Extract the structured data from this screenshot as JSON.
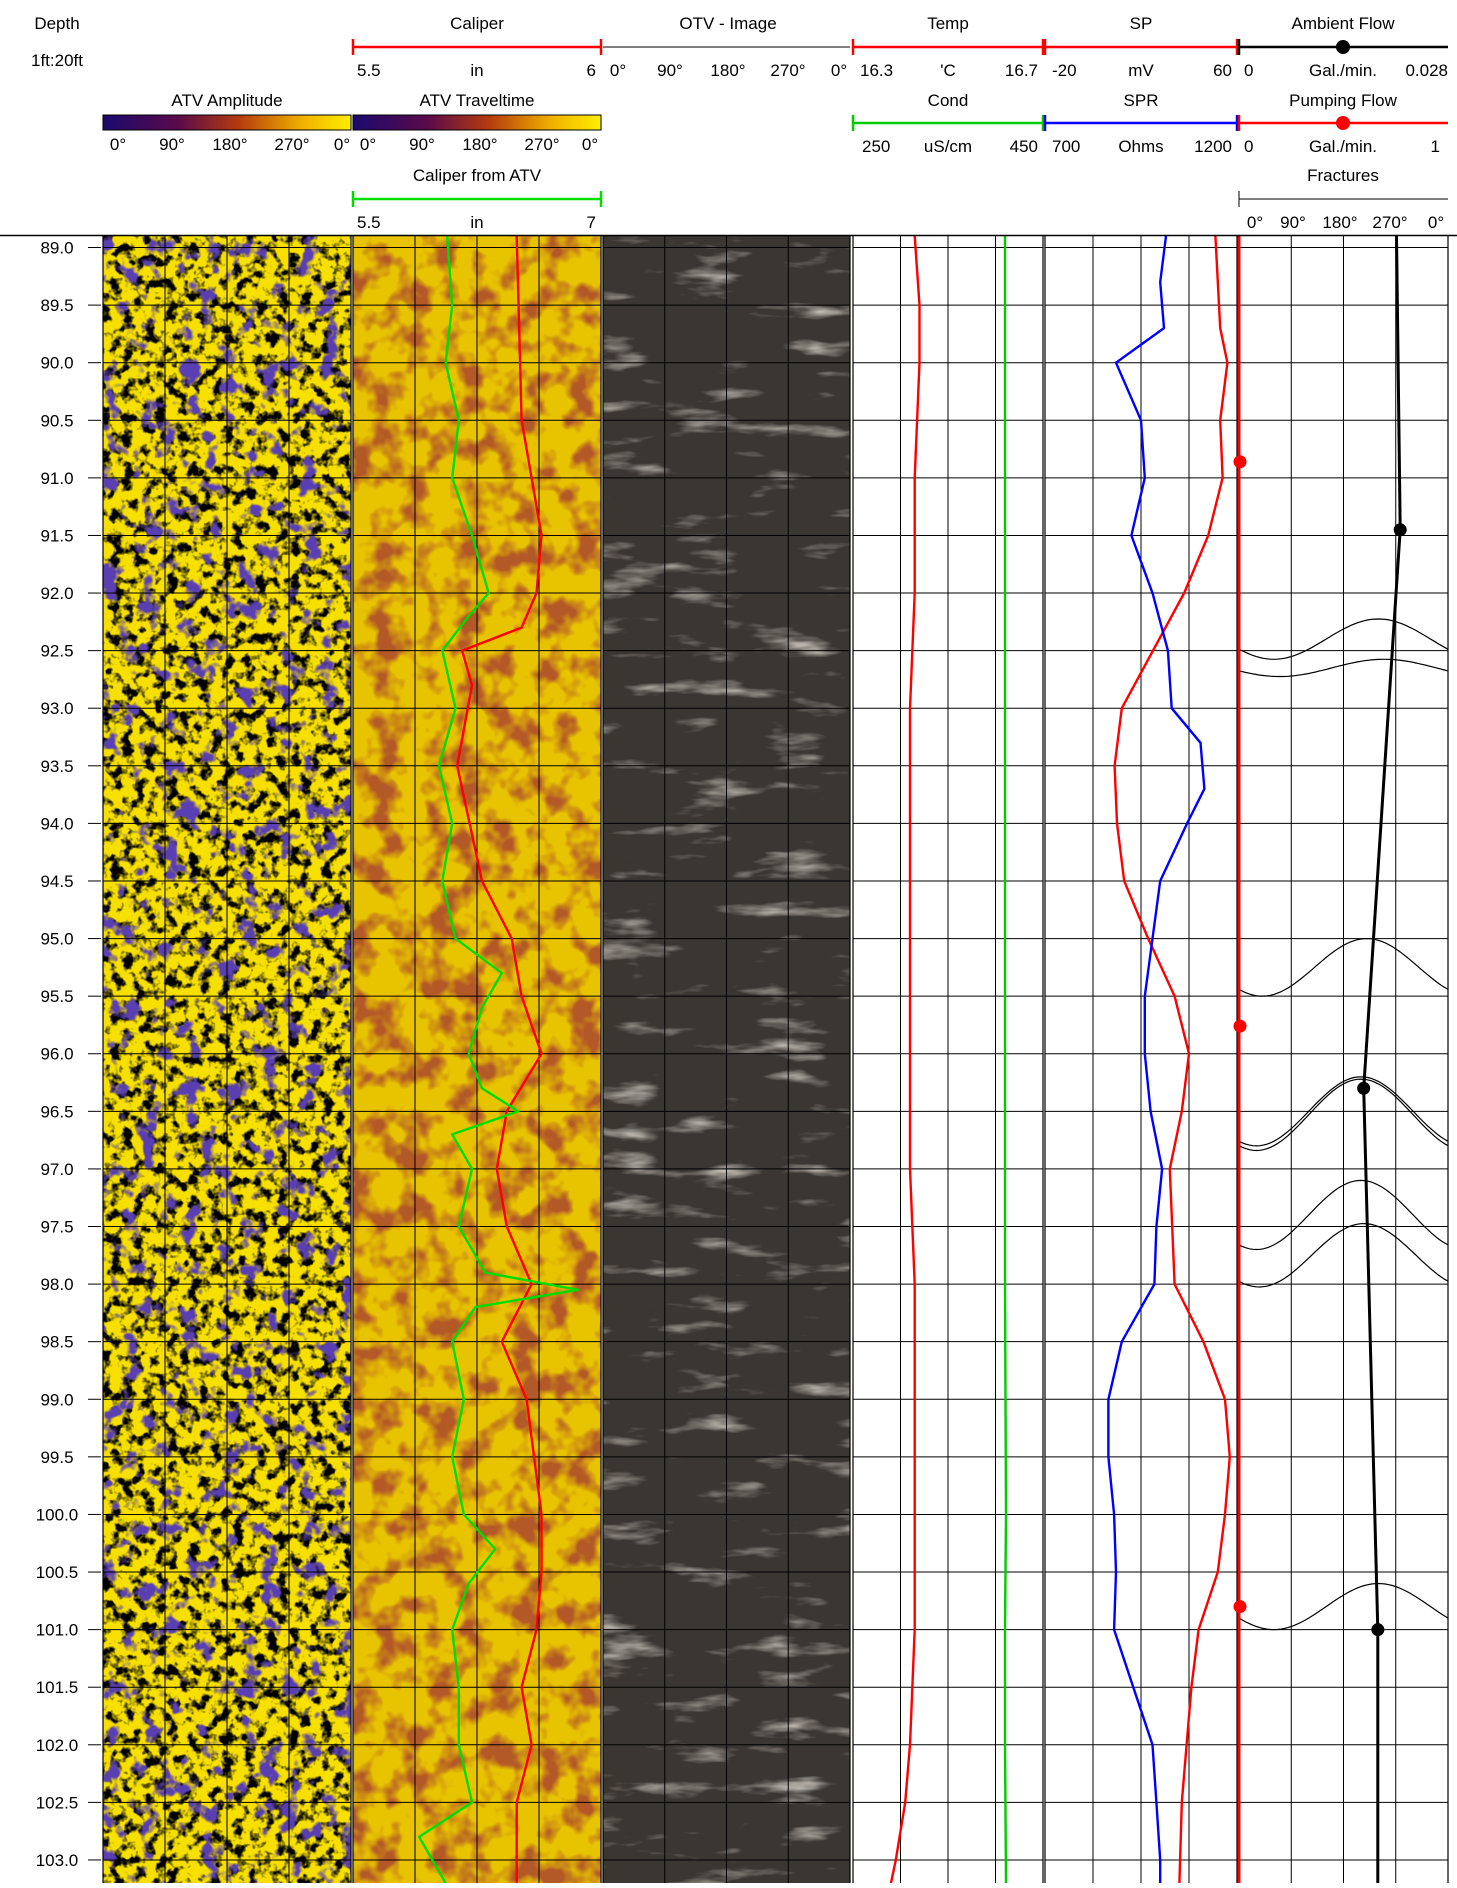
{
  "header": {
    "depth_title": "Depth",
    "depth_scale": "1ft:20ft",
    "atv_amplitude": {
      "title": "ATV Amplitude",
      "ticks": [
        "0°",
        "90°",
        "180°",
        "270°",
        "0°"
      ]
    },
    "atv_traveltime": {
      "title": "ATV Traveltime",
      "ticks": [
        "0°",
        "90°",
        "180°",
        "270°",
        "0°"
      ]
    },
    "caliper": {
      "title": "Caliper",
      "min": "5.5",
      "unit": "in",
      "max": "6",
      "color": "#ff0000"
    },
    "caliper_atv": {
      "title": "Caliper from ATV",
      "min": "5.5",
      "unit": "in",
      "max": "7",
      "color": "#00dd00"
    },
    "otv": {
      "title": "OTV - Image",
      "ticks": [
        "0°",
        "90°",
        "180°",
        "270°",
        "0°"
      ]
    },
    "temp": {
      "title": "Temp",
      "min": "16.3",
      "unit": "'C",
      "max": "16.7",
      "color": "#ff0000"
    },
    "cond": {
      "title": "Cond",
      "min": "250",
      "unit": "uS/cm",
      "max": "450",
      "color": "#00cc00"
    },
    "sp": {
      "title": "SP",
      "min": "-20",
      "unit": "mV",
      "max": "60",
      "color": "#ff0000"
    },
    "spr": {
      "title": "SPR",
      "min": "700",
      "unit": "Ohms",
      "max": "1200",
      "color": "#0000ff"
    },
    "ambient_flow": {
      "title": "Ambient Flow",
      "min": "0",
      "unit": "Gal./min.",
      "max": "0.028",
      "color": "#000000"
    },
    "pumping_flow": {
      "title": "Pumping Flow",
      "min": "0",
      "unit": "Gal./min.",
      "max": "1",
      "color": "#ff0000"
    },
    "fractures": {
      "title": "Fractures",
      "ticks": [
        "0°",
        "90°",
        "180°",
        "270°",
        "0°"
      ]
    }
  },
  "chart_data": {
    "type": "line",
    "depth_unit": "ft",
    "depth_range": [
      88.9,
      103.2
    ],
    "depth_ticks": [
      "89.0",
      "89.5",
      "90.0",
      "90.5",
      "91.0",
      "91.5",
      "92.0",
      "92.5",
      "93.0",
      "93.5",
      "94.0",
      "94.5",
      "95.0",
      "95.5",
      "96.0",
      "96.5",
      "97.0",
      "97.5",
      "98.0",
      "98.5",
      "99.0",
      "99.5",
      "100.0",
      "100.5",
      "101.0",
      "101.5",
      "102.0",
      "102.5",
      "103.0"
    ],
    "curves": {
      "caliper": {
        "range": [
          5.5,
          6.0
        ],
        "depth": [
          88.9,
          90.5,
          91.0,
          91.5,
          92.0,
          92.3,
          92.5,
          92.8,
          93.5,
          94.5,
          95.0,
          95.5,
          96.0,
          96.5,
          97.0,
          97.5,
          98.0,
          98.5,
          99.0,
          100.0,
          100.5,
          101.0,
          101.5,
          102.0,
          102.5,
          103.2
        ],
        "value": [
          5.83,
          5.84,
          5.86,
          5.88,
          5.87,
          5.84,
          5.72,
          5.74,
          5.71,
          5.76,
          5.82,
          5.84,
          5.88,
          5.81,
          5.79,
          5.81,
          5.86,
          5.8,
          5.85,
          5.88,
          5.88,
          5.87,
          5.84,
          5.86,
          5.83,
          5.83
        ]
      },
      "caliper_atv": {
        "range": [
          5.5,
          7.0
        ],
        "depth": [
          88.9,
          89.5,
          90.0,
          90.5,
          91.0,
          91.5,
          91.8,
          92.0,
          92.2,
          92.5,
          93.0,
          93.5,
          94.0,
          94.5,
          95.0,
          95.3,
          95.6,
          96.0,
          96.3,
          96.5,
          96.7,
          97.0,
          97.5,
          97.9,
          98.05,
          98.2,
          98.5,
          99.0,
          99.5,
          100.0,
          100.3,
          100.6,
          101.0,
          101.5,
          102.0,
          102.5,
          102.8,
          103.2
        ],
        "value": [
          6.07,
          6.1,
          6.06,
          6.14,
          6.1,
          6.22,
          6.28,
          6.32,
          6.2,
          6.04,
          6.12,
          6.02,
          6.1,
          6.04,
          6.12,
          6.4,
          6.28,
          6.2,
          6.28,
          6.5,
          6.1,
          6.22,
          6.14,
          6.3,
          6.86,
          6.24,
          6.1,
          6.17,
          6.1,
          6.17,
          6.36,
          6.2,
          6.1,
          6.14,
          6.14,
          6.22,
          5.9,
          6.06
        ]
      },
      "temp": {
        "range": [
          16.3,
          16.7
        ],
        "depth": [
          88.9,
          89.5,
          90.0,
          91.0,
          92.0,
          93.0,
          94.0,
          95.0,
          96.0,
          97.0,
          98.0,
          99.0,
          100.0,
          101.0,
          102.0,
          102.5,
          103.0,
          103.2
        ],
        "value": [
          16.43,
          16.44,
          16.44,
          16.43,
          16.43,
          16.42,
          16.42,
          16.42,
          16.42,
          16.42,
          16.43,
          16.43,
          16.43,
          16.43,
          16.42,
          16.41,
          16.39,
          16.38
        ]
      },
      "cond": {
        "range": [
          250,
          450
        ],
        "depth": [
          88.9,
          90.0,
          92.0,
          94.0,
          96.0,
          98.0,
          100.0,
          101.0,
          102.0,
          103.2
        ],
        "value": [
          410,
          410,
          410,
          410,
          410,
          410,
          411,
          410,
          410,
          411
        ]
      },
      "sp": {
        "range": [
          -20,
          60
        ],
        "depth": [
          88.9,
          89.7,
          90.0,
          90.5,
          91.0,
          91.5,
          92.0,
          92.5,
          93.0,
          93.5,
          94.0,
          94.5,
          95.0,
          95.5,
          96.0,
          96.5,
          97.0,
          97.5,
          98.0,
          98.5,
          99.0,
          99.5,
          100.0,
          100.5,
          101.0,
          101.5,
          102.0,
          102.5,
          103.2
        ],
        "value": [
          51,
          53,
          56,
          53,
          54,
          48,
          38,
          25,
          12,
          9,
          10,
          13,
          23,
          34,
          40,
          37,
          32,
          33,
          34,
          46,
          55,
          57,
          55,
          52,
          44,
          41,
          39,
          37,
          36
        ]
      },
      "spr": {
        "range": [
          700,
          1200
        ],
        "depth": [
          88.9,
          89.3,
          89.7,
          90.0,
          90.5,
          91.0,
          91.5,
          92.0,
          92.5,
          93.0,
          93.3,
          93.7,
          94.0,
          94.5,
          95.0,
          95.5,
          96.0,
          96.5,
          97.0,
          97.5,
          98.0,
          98.5,
          99.0,
          99.5,
          100.0,
          100.5,
          101.0,
          101.5,
          102.0,
          102.5,
          103.0,
          103.2
        ],
        "value": [
          1015,
          1000,
          1010,
          885,
          950,
          960,
          925,
          980,
          1020,
          1030,
          1105,
          1115,
          1070,
          1000,
          980,
          960,
          960,
          975,
          1005,
          990,
          985,
          900,
          865,
          865,
          880,
          885,
          880,
          930,
          980,
          990,
          1000,
          1000
        ]
      },
      "ambient_flow": {
        "range": [
          0,
          0.028
        ],
        "depth": [
          88.9,
          91.45,
          96.3,
          101.0,
          103.2
        ],
        "value": [
          0.0211,
          0.0216,
          0.0167,
          0.0186,
          0.0186
        ],
        "markers": [
          {
            "depth": 91.45,
            "value": 0.0216
          },
          {
            "depth": 96.3,
            "value": 0.0167
          },
          {
            "depth": 101.0,
            "value": 0.0186
          }
        ]
      },
      "pumping_flow": {
        "range": [
          0,
          1
        ],
        "depth": [
          88.9,
          103.2
        ],
        "value": [
          0.0,
          0.0
        ],
        "markers": [
          {
            "depth": 90.86,
            "value": 0.0
          },
          {
            "depth": 95.76,
            "value": 0.0
          },
          {
            "depth": 100.8,
            "value": 0.0
          }
        ]
      }
    },
    "fractures": [
      {
        "depth": 92.4,
        "amplitude_ft": 0.35,
        "phase_deg": 240
      },
      {
        "depth": 92.65,
        "amplitude_ft": 0.15,
        "phase_deg": 250
      },
      {
        "depth": 95.25,
        "amplitude_ft": 0.5,
        "phase_deg": 220
      },
      {
        "depth": 96.5,
        "amplitude_ft": 0.6,
        "phase_deg": 210
      },
      {
        "depth": 96.53,
        "amplitude_ft": 0.62,
        "phase_deg": 210
      },
      {
        "depth": 97.4,
        "amplitude_ft": 0.6,
        "phase_deg": 210
      },
      {
        "depth": 97.75,
        "amplitude_ft": 0.55,
        "phase_deg": 215
      },
      {
        "depth": 100.8,
        "amplitude_ft": 0.4,
        "phase_deg": 240
      }
    ]
  }
}
